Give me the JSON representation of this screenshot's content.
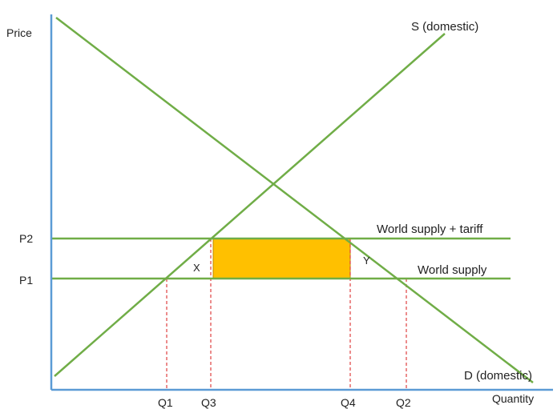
{
  "axes": {
    "y_label": "Price",
    "x_label": "Quantity"
  },
  "price_levels": [
    {
      "id": "p1",
      "label": "P1"
    },
    {
      "id": "p2",
      "label": "P2"
    }
  ],
  "quantities": [
    {
      "id": "q1",
      "label": "Q1"
    },
    {
      "id": "q3",
      "label": "Q3"
    },
    {
      "id": "q4",
      "label": "Q4"
    },
    {
      "id": "q2",
      "label": "Q2"
    }
  ],
  "curves": {
    "supply": "S (domestic)",
    "demand": "D (domestic)",
    "world_supply": "World supply",
    "world_supply_tariff": "World supply + tariff"
  },
  "areas": {
    "x": "X",
    "y": "Y"
  },
  "colors": {
    "axis": "#5b9bd5",
    "curve": "#70ad47",
    "guide": "#e04040",
    "tariff_revenue": "#ffc000"
  }
}
